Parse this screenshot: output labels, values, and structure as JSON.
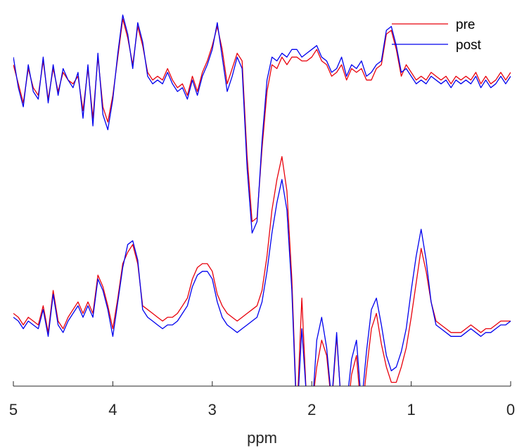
{
  "chart_data": {
    "type": "line",
    "xlabel": "ppm",
    "xlim": [
      5,
      0
    ],
    "x_reversed": true,
    "x_ticks": [
      "5",
      "4",
      "3",
      "2",
      "1",
      "0"
    ],
    "x_tick_values": [
      5,
      4,
      3,
      2,
      1,
      0
    ],
    "y_axis_visible": false,
    "ylim": [
      0,
      10
    ],
    "grid": false,
    "legend": {
      "placement": "top-right"
    },
    "series": [
      {
        "name": "pre",
        "color": "#e8000b",
        "trace_group": "upper",
        "x": [
          5.0,
          4.95,
          4.9,
          4.85,
          4.8,
          4.75,
          4.7,
          4.65,
          4.6,
          4.55,
          4.5,
          4.45,
          4.4,
          4.35,
          4.3,
          4.25,
          4.2,
          4.15,
          4.1,
          4.05,
          4.0,
          3.95,
          3.9,
          3.85,
          3.8,
          3.75,
          3.7,
          3.65,
          3.6,
          3.55,
          3.5,
          3.45,
          3.4,
          3.35,
          3.3,
          3.25,
          3.2,
          3.15,
          3.1,
          3.05,
          3.0,
          2.95,
          2.9,
          2.85,
          2.8,
          2.75,
          2.7,
          2.65,
          2.6,
          2.55,
          2.5,
          2.45,
          2.4,
          2.35,
          2.3,
          2.25,
          2.2,
          2.15,
          2.1,
          2.05,
          2.0,
          1.95,
          1.9,
          1.85,
          1.8,
          1.75,
          1.7,
          1.65,
          1.6,
          1.55,
          1.5,
          1.45,
          1.4,
          1.35,
          1.3,
          1.25,
          1.2,
          1.15,
          1.1,
          1.05,
          1.0,
          0.95,
          0.9,
          0.85,
          0.8,
          0.75,
          0.7,
          0.65,
          0.6,
          0.55,
          0.5,
          0.45,
          0.4,
          0.35,
          0.3,
          0.25,
          0.2,
          0.15,
          0.1,
          0.05,
          0.0
        ],
        "y": [
          8.4,
          7.9,
          7.4,
          8.3,
          7.8,
          7.6,
          8.5,
          7.5,
          8.3,
          7.7,
          8.2,
          8.0,
          7.9,
          8.1,
          7.2,
          8.3,
          7.0,
          8.6,
          7.3,
          6.9,
          7.6,
          8.6,
          9.6,
          9.1,
          8.4,
          9.4,
          8.9,
          8.2,
          8.0,
          8.1,
          8.0,
          8.3,
          8.0,
          7.8,
          7.9,
          7.6,
          8.1,
          7.7,
          8.2,
          8.5,
          8.9,
          9.4,
          8.8,
          7.9,
          8.3,
          8.7,
          8.5,
          6.0,
          4.3,
          4.4,
          6.2,
          7.7,
          8.4,
          8.3,
          8.6,
          8.4,
          8.6,
          8.6,
          8.5,
          8.5,
          8.6,
          8.8,
          8.5,
          8.4,
          8.1,
          8.2,
          8.4,
          8.0,
          8.3,
          8.2,
          8.3,
          8.0,
          8.0,
          8.3,
          8.4,
          9.2,
          9.3,
          8.8,
          8.1,
          8.4,
          8.2,
          8.0,
          8.1,
          8.0,
          8.2,
          8.1,
          8.0,
          8.1,
          7.9,
          8.1,
          8.0,
          8.1,
          8.0,
          8.2,
          7.9,
          8.1,
          7.9,
          8.0,
          8.2,
          8.0,
          8.2
        ]
      },
      {
        "name": "post",
        "color": "#0000ee",
        "trace_group": "upper",
        "x": [
          5.0,
          4.95,
          4.9,
          4.85,
          4.8,
          4.75,
          4.7,
          4.65,
          4.6,
          4.55,
          4.5,
          4.45,
          4.4,
          4.35,
          4.3,
          4.25,
          4.2,
          4.15,
          4.1,
          4.05,
          4.0,
          3.95,
          3.9,
          3.85,
          3.8,
          3.75,
          3.7,
          3.65,
          3.6,
          3.55,
          3.5,
          3.45,
          3.4,
          3.35,
          3.3,
          3.25,
          3.2,
          3.15,
          3.1,
          3.05,
          3.0,
          2.95,
          2.9,
          2.85,
          2.8,
          2.75,
          2.7,
          2.65,
          2.6,
          2.55,
          2.5,
          2.45,
          2.4,
          2.35,
          2.3,
          2.25,
          2.2,
          2.15,
          2.1,
          2.05,
          2.0,
          1.95,
          1.9,
          1.85,
          1.8,
          1.75,
          1.7,
          1.65,
          1.6,
          1.55,
          1.5,
          1.45,
          1.4,
          1.35,
          1.3,
          1.25,
          1.2,
          1.15,
          1.1,
          1.05,
          1.0,
          0.95,
          0.9,
          0.85,
          0.8,
          0.75,
          0.7,
          0.65,
          0.6,
          0.55,
          0.5,
          0.45,
          0.4,
          0.35,
          0.3,
          0.25,
          0.2,
          0.15,
          0.1,
          0.05,
          0.0
        ],
        "y": [
          8.6,
          7.8,
          7.3,
          8.4,
          7.7,
          7.5,
          8.6,
          7.4,
          8.4,
          7.6,
          8.3,
          8.0,
          7.8,
          8.2,
          7.0,
          8.4,
          6.8,
          8.7,
          7.1,
          6.7,
          7.5,
          8.7,
          9.7,
          9.2,
          8.3,
          9.5,
          9.0,
          8.1,
          7.9,
          8.0,
          7.9,
          8.2,
          7.9,
          7.7,
          7.8,
          7.5,
          8.0,
          7.6,
          8.1,
          8.4,
          8.8,
          9.5,
          8.6,
          7.7,
          8.1,
          8.6,
          8.3,
          5.7,
          4.0,
          4.3,
          6.4,
          8.0,
          8.6,
          8.5,
          8.7,
          8.6,
          8.8,
          8.8,
          8.6,
          8.7,
          8.8,
          8.9,
          8.6,
          8.5,
          8.2,
          8.3,
          8.6,
          8.1,
          8.4,
          8.3,
          8.5,
          8.1,
          8.2,
          8.4,
          8.5,
          9.3,
          9.4,
          8.9,
          8.2,
          8.3,
          8.1,
          7.9,
          8.0,
          7.9,
          8.1,
          8.0,
          7.9,
          8.0,
          7.8,
          8.0,
          7.9,
          8.0,
          7.9,
          8.1,
          7.8,
          8.0,
          7.8,
          7.9,
          8.1,
          7.9,
          8.1
        ]
      },
      {
        "name": "pre",
        "color": "#e8000b",
        "trace_group": "lower",
        "x": [
          5.0,
          4.95,
          4.9,
          4.85,
          4.8,
          4.75,
          4.7,
          4.65,
          4.6,
          4.55,
          4.5,
          4.45,
          4.4,
          4.35,
          4.3,
          4.25,
          4.2,
          4.15,
          4.1,
          4.05,
          4.0,
          3.95,
          3.9,
          3.85,
          3.8,
          3.75,
          3.7,
          3.65,
          3.6,
          3.55,
          3.5,
          3.45,
          3.4,
          3.35,
          3.3,
          3.25,
          3.2,
          3.15,
          3.1,
          3.05,
          3.0,
          2.95,
          2.9,
          2.85,
          2.8,
          2.75,
          2.7,
          2.65,
          2.6,
          2.55,
          2.5,
          2.45,
          2.4,
          2.35,
          2.3,
          2.25,
          2.2,
          2.15,
          2.1,
          2.05,
          2.0,
          1.95,
          1.9,
          1.85,
          1.8,
          1.75,
          1.7,
          1.65,
          1.6,
          1.55,
          1.5,
          1.45,
          1.4,
          1.35,
          1.3,
          1.25,
          1.2,
          1.15,
          1.1,
          1.05,
          1.0,
          0.95,
          0.9,
          0.85,
          0.8,
          0.75,
          0.7,
          0.65,
          0.6,
          0.55,
          0.5,
          0.45,
          0.4,
          0.35,
          0.3,
          0.25,
          0.2,
          0.15,
          0.1,
          0.05,
          0.0
        ],
        "y": [
          1.9,
          1.8,
          1.6,
          1.8,
          1.7,
          1.6,
          2.1,
          1.4,
          2.5,
          1.7,
          1.5,
          1.8,
          2.0,
          2.2,
          1.9,
          2.2,
          1.9,
          2.9,
          2.6,
          2.1,
          1.5,
          2.3,
          3.2,
          3.5,
          3.7,
          3.2,
          2.1,
          2.0,
          1.9,
          1.8,
          1.7,
          1.8,
          1.8,
          1.9,
          2.1,
          2.3,
          2.8,
          3.1,
          3.2,
          3.2,
          3.0,
          2.4,
          2.1,
          1.9,
          1.8,
          1.7,
          1.8,
          1.9,
          2.0,
          2.1,
          2.5,
          3.4,
          4.6,
          5.4,
          6.0,
          5.1,
          2.8,
          -0.8,
          2.3,
          -0.5,
          -0.6,
          0.5,
          1.2,
          0.8,
          -0.5,
          1.3,
          -0.6,
          -0.9,
          0.3,
          0.8,
          -0.8,
          0.4,
          1.5,
          1.9,
          1.1,
          0.5,
          0.1,
          0.1,
          0.5,
          1.0,
          1.8,
          2.7,
          3.6,
          3.0,
          2.2,
          1.7,
          1.6,
          1.5,
          1.4,
          1.4,
          1.4,
          1.5,
          1.6,
          1.5,
          1.4,
          1.5,
          1.5,
          1.6,
          1.7,
          1.7,
          1.7
        ]
      },
      {
        "name": "post",
        "color": "#0000ee",
        "trace_group": "lower",
        "x": [
          5.0,
          4.95,
          4.9,
          4.85,
          4.8,
          4.75,
          4.7,
          4.65,
          4.6,
          4.55,
          4.5,
          4.45,
          4.4,
          4.35,
          4.3,
          4.25,
          4.2,
          4.15,
          4.1,
          4.05,
          4.0,
          3.95,
          3.9,
          3.85,
          3.8,
          3.75,
          3.7,
          3.65,
          3.6,
          3.55,
          3.5,
          3.45,
          3.4,
          3.35,
          3.3,
          3.25,
          3.2,
          3.15,
          3.1,
          3.05,
          3.0,
          2.95,
          2.9,
          2.85,
          2.8,
          2.75,
          2.7,
          2.65,
          2.6,
          2.55,
          2.5,
          2.45,
          2.4,
          2.35,
          2.3,
          2.25,
          2.2,
          2.15,
          2.1,
          2.05,
          2.0,
          1.95,
          1.9,
          1.85,
          1.8,
          1.75,
          1.7,
          1.65,
          1.6,
          1.55,
          1.5,
          1.45,
          1.4,
          1.35,
          1.3,
          1.25,
          1.2,
          1.15,
          1.1,
          1.05,
          1.0,
          0.95,
          0.9,
          0.85,
          0.8,
          0.75,
          0.7,
          0.65,
          0.6,
          0.55,
          0.5,
          0.45,
          0.4,
          0.35,
          0.3,
          0.25,
          0.2,
          0.15,
          0.1,
          0.05,
          0.0
        ],
        "y": [
          1.8,
          1.7,
          1.5,
          1.7,
          1.6,
          1.5,
          2.0,
          1.3,
          2.4,
          1.6,
          1.4,
          1.7,
          1.9,
          2.1,
          1.8,
          2.1,
          1.8,
          2.8,
          2.5,
          2.0,
          1.3,
          2.2,
          3.1,
          3.7,
          3.8,
          3.3,
          2.0,
          1.8,
          1.7,
          1.6,
          1.5,
          1.6,
          1.6,
          1.7,
          1.9,
          2.1,
          2.6,
          2.9,
          3.0,
          3.0,
          2.8,
          2.2,
          1.8,
          1.6,
          1.5,
          1.4,
          1.5,
          1.6,
          1.7,
          1.8,
          2.2,
          3.0,
          4.0,
          4.8,
          5.4,
          4.6,
          2.5,
          -0.9,
          1.5,
          -0.4,
          -0.8,
          1.2,
          1.8,
          1.0,
          -0.4,
          1.4,
          -0.7,
          -0.5,
          0.7,
          1.2,
          -0.5,
          0.9,
          2.0,
          2.3,
          1.6,
          0.8,
          0.4,
          0.5,
          0.9,
          1.5,
          2.5,
          3.4,
          4.1,
          3.3,
          2.2,
          1.6,
          1.5,
          1.4,
          1.3,
          1.3,
          1.3,
          1.4,
          1.5,
          1.4,
          1.3,
          1.4,
          1.4,
          1.5,
          1.6,
          1.6,
          1.7
        ]
      }
    ]
  }
}
